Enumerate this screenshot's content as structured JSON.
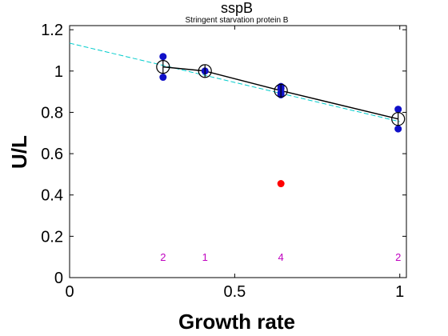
{
  "chart_data": {
    "type": "scatter",
    "title": "sspB",
    "subtitle": "Stringent starvation protein B",
    "xlabel": "Growth rate",
    "ylabel": "U/L",
    "xlim": [
      0,
      1.02
    ],
    "ylim": [
      0,
      1.22
    ],
    "x_ticks": [
      0,
      0.5,
      1
    ],
    "x_tick_labels": [
      "0",
      "0.5",
      "1"
    ],
    "y_ticks": [
      0,
      0.2,
      0.4,
      0.6,
      0.8,
      1.0,
      1.2
    ],
    "y_tick_labels": [
      "0",
      "0.2",
      "0.4",
      "0.6",
      "0.8",
      "1",
      "1.2"
    ],
    "grid": false,
    "colors": {
      "points": "#1010c8",
      "outlier": "#ff0000",
      "fit_line": "#000000",
      "trend_line": "#00cccc",
      "counts": "#c000c0",
      "mean_marker": "#000000"
    },
    "series": [
      {
        "kind": "replicate_points",
        "points": [
          {
            "x": 0.283,
            "y": 1.07
          },
          {
            "x": 0.283,
            "y": 0.97
          },
          {
            "x": 0.41,
            "y": 1.0
          },
          {
            "x": 0.64,
            "y": 0.925
          },
          {
            "x": 0.64,
            "y": 0.915
          },
          {
            "x": 0.64,
            "y": 0.895
          },
          {
            "x": 0.64,
            "y": 0.885
          },
          {
            "x": 0.995,
            "y": 0.815
          },
          {
            "x": 0.995,
            "y": 0.72
          }
        ]
      },
      {
        "kind": "outlier_points",
        "points": [
          {
            "x": 0.64,
            "y": 0.455
          }
        ]
      },
      {
        "kind": "means",
        "points": [
          {
            "x": 0.283,
            "y": 1.02
          },
          {
            "x": 0.41,
            "y": 1.0
          },
          {
            "x": 0.64,
            "y": 0.905
          },
          {
            "x": 0.995,
            "y": 0.768
          }
        ]
      },
      {
        "kind": "trend_line",
        "x": [
          0,
          1.0
        ],
        "y": [
          1.135,
          0.755
        ]
      }
    ],
    "counts": [
      {
        "x": 0.283,
        "label": "2"
      },
      {
        "x": 0.41,
        "label": "1"
      },
      {
        "x": 0.64,
        "label": "4"
      },
      {
        "x": 0.995,
        "label": "2"
      }
    ],
    "counts_y": 0.1
  }
}
